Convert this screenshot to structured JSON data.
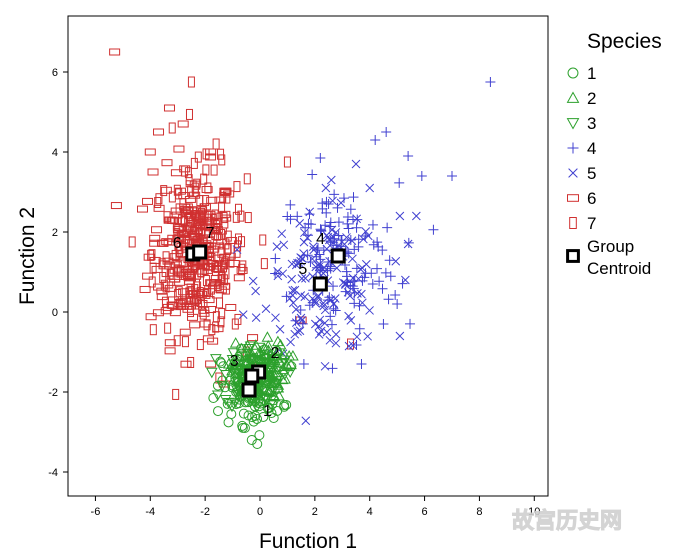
{
  "chart_data": {
    "type": "scatter",
    "title": "",
    "xlabel": "Function 1",
    "ylabel": "Function 2",
    "xlim": [
      -7,
      10.5
    ],
    "ylim": [
      -4.6,
      7.4
    ],
    "xticks": [
      -6,
      -4,
      -2,
      0,
      2,
      4,
      6,
      8,
      10
    ],
    "yticks": [
      -4,
      -2,
      0,
      2,
      4,
      6
    ],
    "grid": false,
    "legend": {
      "title": "Species",
      "placement": "right",
      "entries": [
        {
          "label": "1",
          "marker": "circle",
          "color": "#2ca02c"
        },
        {
          "label": "2",
          "marker": "triangle-up",
          "color": "#2ca02c"
        },
        {
          "label": "3",
          "marker": "triangle-down",
          "color": "#2ca02c"
        },
        {
          "label": "4",
          "marker": "plus",
          "color": "#4040d0"
        },
        {
          "label": "5",
          "marker": "cross",
          "color": "#4040d0"
        },
        {
          "label": "6",
          "marker": "rect-horizontal",
          "color": "#d03030"
        },
        {
          "label": "7",
          "marker": "rect-vertical",
          "color": "#d03030"
        },
        {
          "label": "Group Centroid",
          "marker": "square",
          "color": "#000000"
        }
      ]
    },
    "centroids": [
      {
        "label": "1",
        "x": -0.4,
        "y": -1.95
      },
      {
        "label": "2",
        "x": -0.05,
        "y": -1.5
      },
      {
        "label": "3",
        "x": -0.3,
        "y": -1.6
      },
      {
        "label": "4",
        "x": 2.85,
        "y": 1.4
      },
      {
        "label": "5",
        "x": 2.2,
        "y": 0.7
      },
      {
        "label": "6",
        "x": -2.45,
        "y": 1.45
      },
      {
        "label": "7",
        "x": -2.2,
        "y": 1.5
      }
    ],
    "series": [
      {
        "name": "1",
        "cloud": {
          "cx": -0.3,
          "cy": -1.9,
          "sx": 0.55,
          "sy": 0.45,
          "n": 140
        },
        "points": [
          [
            -0.3,
            -3.2
          ],
          [
            -0.1,
            -3.3
          ],
          [
            0.5,
            -2.65
          ],
          [
            -1.7,
            -2.15
          ],
          [
            -0.55,
            -2.9
          ],
          [
            0.2,
            -2.1
          ]
        ]
      },
      {
        "name": "2",
        "cloud": {
          "cx": -0.05,
          "cy": -1.45,
          "sx": 0.5,
          "sy": 0.35,
          "n": 90
        },
        "points": [
          [
            0.6,
            -1.05
          ],
          [
            1.0,
            -1.35
          ],
          [
            0.3,
            -0.85
          ],
          [
            1.2,
            -1.1
          ]
        ]
      },
      {
        "name": "3",
        "cloud": {
          "cx": -0.3,
          "cy": -1.6,
          "sx": 0.5,
          "sy": 0.4,
          "n": 90
        },
        "points": [
          [
            -0.8,
            -2.1
          ],
          [
            0.4,
            -2.3
          ],
          [
            0.9,
            -1.2
          ],
          [
            1.1,
            -1.5
          ]
        ]
      },
      {
        "name": "4",
        "cloud": {
          "cx": 2.85,
          "cy": 1.3,
          "sx": 1.1,
          "sy": 0.95,
          "n": 130
        },
        "points": [
          [
            8.4,
            5.75
          ],
          [
            4.6,
            4.5
          ],
          [
            4.2,
            4.3
          ],
          [
            5.4,
            3.9
          ],
          [
            5.9,
            3.4
          ],
          [
            2.2,
            3.85
          ],
          [
            2.5,
            2.7
          ],
          [
            3.7,
            -1.3
          ],
          [
            1.6,
            -1.3
          ],
          [
            7.0,
            3.4
          ],
          [
            5.0,
            0.2
          ],
          [
            4.5,
            -0.3
          ]
        ]
      },
      {
        "name": "5",
        "cloud": {
          "cx": 2.3,
          "cy": 0.7,
          "sx": 1.1,
          "sy": 0.85,
          "n": 130
        },
        "points": [
          [
            2.4,
            3.1
          ],
          [
            2.6,
            3.3
          ],
          [
            3.5,
            3.7
          ],
          [
            5.1,
            2.4
          ],
          [
            5.7,
            2.4
          ],
          [
            5.4,
            1.7
          ],
          [
            5.3,
            0.8
          ],
          [
            5.1,
            -0.6
          ],
          [
            4.0,
            3.1
          ]
        ]
      },
      {
        "name": "6",
        "cloud": {
          "cx": -2.45,
          "cy": 1.45,
          "sx": 0.8,
          "sy": 1.05,
          "n": 200
        },
        "points": [
          [
            -5.3,
            6.5
          ],
          [
            -3.7,
            4.5
          ],
          [
            -3.3,
            5.1
          ],
          [
            -2.8,
            4.7
          ],
          [
            -1.8,
            4.0
          ],
          [
            -3.3,
            2.3
          ],
          [
            -2.0,
            -0.3
          ],
          [
            -1.8,
            -1.3
          ],
          [
            -1.3,
            -1.8
          ],
          [
            1.5,
            -0.2
          ],
          [
            -4.0,
            4.0
          ],
          [
            -3.9,
            3.5
          ]
        ]
      },
      {
        "name": "7",
        "cloud": {
          "cx": -2.2,
          "cy": 1.5,
          "sx": 0.85,
          "sy": 1.05,
          "n": 200
        },
        "points": [
          [
            -2.5,
            5.75
          ],
          [
            -1.6,
            4.2
          ],
          [
            -3.2,
            4.6
          ],
          [
            -1.9,
            3.1
          ],
          [
            0.1,
            1.8
          ],
          [
            1.0,
            3.75
          ],
          [
            3.3,
            -0.8
          ],
          [
            -1.5,
            -1.65
          ],
          [
            -0.9,
            -0.3
          ],
          [
            -0.5,
            -1.0
          ]
        ]
      }
    ]
  },
  "watermark": "故宫历史网"
}
